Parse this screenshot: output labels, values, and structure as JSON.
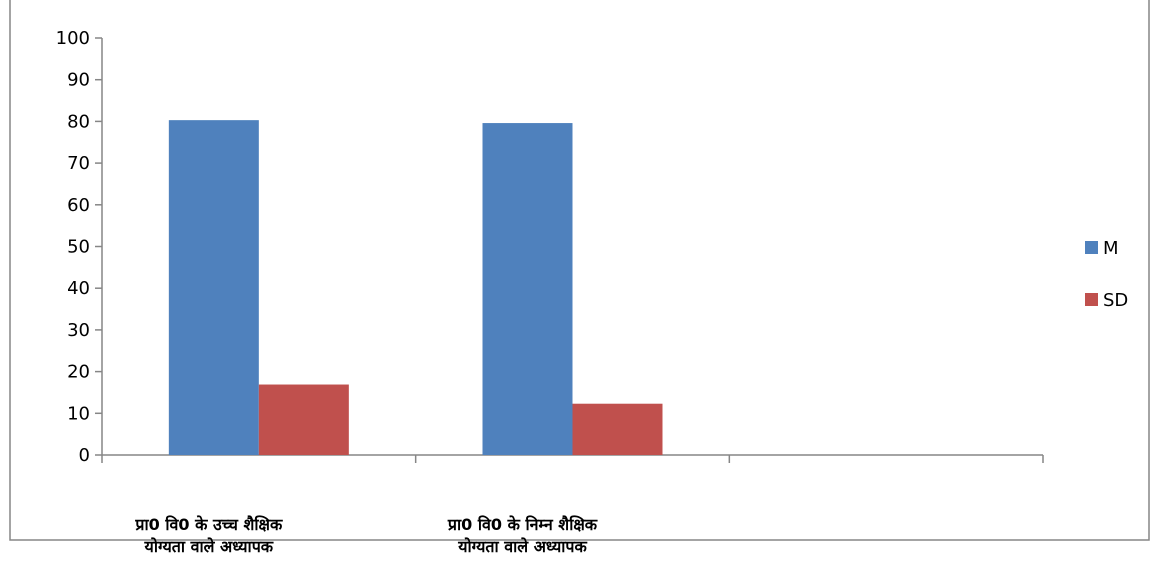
{
  "chart_data": {
    "type": "bar",
    "categories": [
      [
        "प्रा0 वि0 के उच्च शैक्षिक",
        "योग्यता वाले अध्यापक"
      ],
      [
        "प्रा0 वि0 के निम्न शैक्षिक",
        "योग्यता वाले अध्यापक"
      ],
      [
        "",
        ""
      ]
    ],
    "series": [
      {
        "name": "M",
        "color": "#4f81bd",
        "values": [
          80.3,
          79.6,
          null
        ]
      },
      {
        "name": "SD",
        "color": "#c0504d",
        "values": [
          16.9,
          12.3,
          null
        ]
      }
    ],
    "ylim": [
      0,
      100
    ],
    "yticks": [
      0,
      10,
      20,
      30,
      40,
      50,
      60,
      70,
      80,
      90,
      100
    ],
    "grid": false,
    "legend_position": "right"
  }
}
